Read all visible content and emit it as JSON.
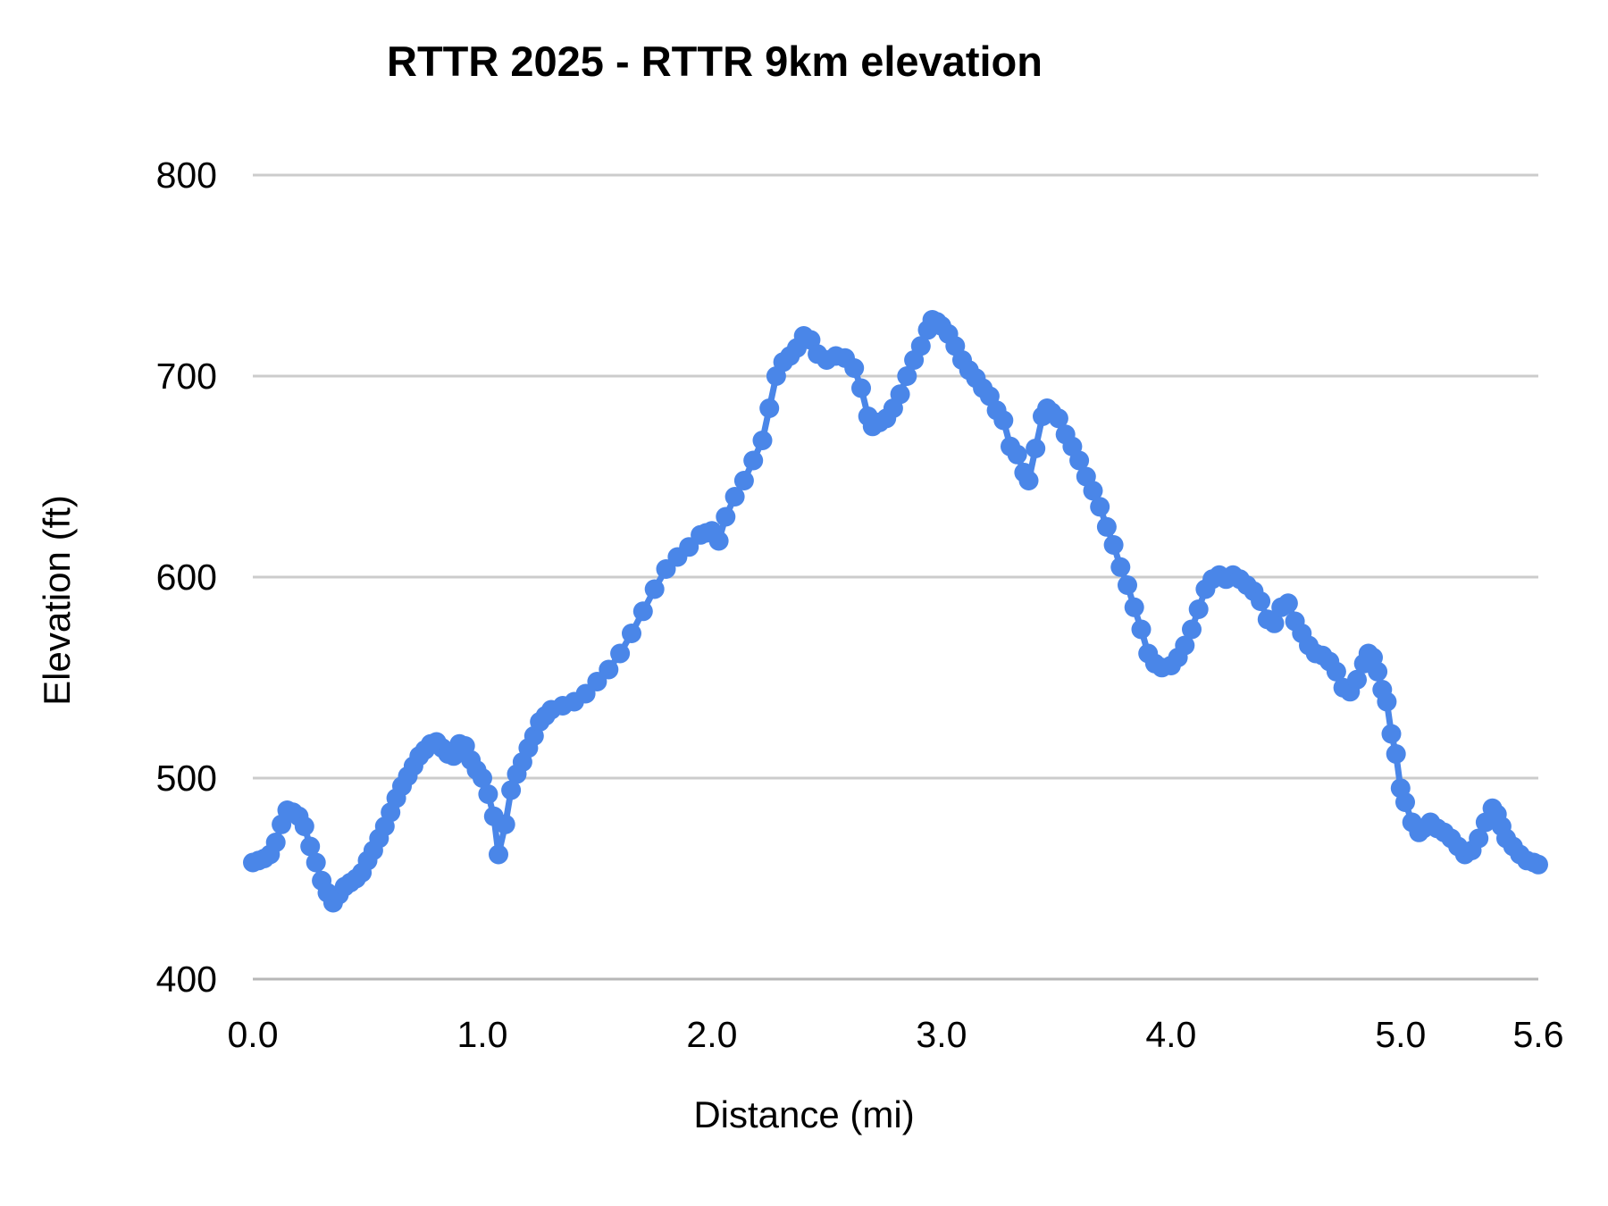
{
  "chart_data": {
    "type": "line",
    "title": "RTTR 2025 - RTTR 9km elevation",
    "xlabel": "Distance (mi)",
    "ylabel": "Elevation (ft)",
    "xlim": [
      0,
      5.6
    ],
    "ylim": [
      400,
      800
    ],
    "xticks": [
      0.0,
      1.0,
      2.0,
      3.0,
      4.0,
      5.0,
      5.6
    ],
    "yticks": [
      400,
      500,
      600,
      700,
      800
    ],
    "grid": "horizontal-only",
    "legend": "none",
    "marker": "circle",
    "series": [
      {
        "name": "elevation-profile",
        "color": "#4a86e8",
        "points": [
          [
            0,
            458
          ],
          [
            0.025,
            459
          ],
          [
            0.05,
            460
          ],
          [
            0.075,
            462
          ],
          [
            0.1,
            468
          ],
          [
            0.125,
            477
          ],
          [
            0.15,
            484
          ],
          [
            0.175,
            483
          ],
          [
            0.2,
            481
          ],
          [
            0.225,
            476
          ],
          [
            0.25,
            466
          ],
          [
            0.275,
            458
          ],
          [
            0.3,
            449
          ],
          [
            0.325,
            443
          ],
          [
            0.35,
            438
          ],
          [
            0.375,
            442
          ],
          [
            0.4,
            446
          ],
          [
            0.425,
            448
          ],
          [
            0.45,
            450
          ],
          [
            0.475,
            453
          ],
          [
            0.5,
            459
          ],
          [
            0.525,
            464
          ],
          [
            0.55,
            470
          ],
          [
            0.575,
            476
          ],
          [
            0.6,
            483
          ],
          [
            0.625,
            490
          ],
          [
            0.65,
            496
          ],
          [
            0.675,
            501
          ],
          [
            0.7,
            506
          ],
          [
            0.725,
            511
          ],
          [
            0.75,
            514
          ],
          [
            0.775,
            517
          ],
          [
            0.8,
            518
          ],
          [
            0.825,
            515
          ],
          [
            0.85,
            512
          ],
          [
            0.875,
            511
          ],
          [
            0.9,
            517
          ],
          [
            0.925,
            516
          ],
          [
            0.95,
            509
          ],
          [
            0.975,
            504
          ],
          [
            1,
            500
          ],
          [
            1.025,
            492
          ],
          [
            1.05,
            481
          ],
          [
            1.07,
            462
          ],
          [
            1.1,
            477
          ],
          [
            1.125,
            494
          ],
          [
            1.15,
            502
          ],
          [
            1.175,
            508
          ],
          [
            1.2,
            515
          ],
          [
            1.225,
            521
          ],
          [
            1.25,
            528
          ],
          [
            1.275,
            531
          ],
          [
            1.3,
            534
          ],
          [
            1.35,
            536
          ],
          [
            1.4,
            538
          ],
          [
            1.45,
            542
          ],
          [
            1.5,
            548
          ],
          [
            1.55,
            554
          ],
          [
            1.6,
            562
          ],
          [
            1.65,
            572
          ],
          [
            1.7,
            583
          ],
          [
            1.75,
            594
          ],
          [
            1.8,
            604
          ],
          [
            1.85,
            610
          ],
          [
            1.9,
            615
          ],
          [
            1.95,
            621
          ],
          [
            1.975,
            622
          ],
          [
            2,
            623
          ],
          [
            2.03,
            618
          ],
          [
            2.06,
            630
          ],
          [
            2.1,
            640
          ],
          [
            2.14,
            648
          ],
          [
            2.18,
            658
          ],
          [
            2.22,
            668
          ],
          [
            2.25,
            684
          ],
          [
            2.28,
            700
          ],
          [
            2.31,
            707
          ],
          [
            2.34,
            710
          ],
          [
            2.37,
            714
          ],
          [
            2.4,
            720
          ],
          [
            2.43,
            718
          ],
          [
            2.46,
            711
          ],
          [
            2.5,
            708
          ],
          [
            2.54,
            710
          ],
          [
            2.58,
            709
          ],
          [
            2.62,
            704
          ],
          [
            2.65,
            694
          ],
          [
            2.68,
            680
          ],
          [
            2.7,
            675
          ],
          [
            2.73,
            677
          ],
          [
            2.76,
            679
          ],
          [
            2.79,
            684
          ],
          [
            2.82,
            691
          ],
          [
            2.85,
            700
          ],
          [
            2.88,
            708
          ],
          [
            2.91,
            715
          ],
          [
            2.94,
            723
          ],
          [
            2.96,
            728
          ],
          [
            2.98,
            727
          ],
          [
            3,
            725
          ],
          [
            3.03,
            721
          ],
          [
            3.06,
            715
          ],
          [
            3.09,
            708
          ],
          [
            3.12,
            703
          ],
          [
            3.15,
            699
          ],
          [
            3.18,
            694
          ],
          [
            3.21,
            690
          ],
          [
            3.24,
            683
          ],
          [
            3.27,
            678
          ],
          [
            3.3,
            665
          ],
          [
            3.33,
            661
          ],
          [
            3.36,
            652
          ],
          [
            3.38,
            648
          ],
          [
            3.41,
            664
          ],
          [
            3.44,
            680
          ],
          [
            3.46,
            684
          ],
          [
            3.48,
            682
          ],
          [
            3.51,
            679
          ],
          [
            3.54,
            671
          ],
          [
            3.57,
            665
          ],
          [
            3.6,
            658
          ],
          [
            3.63,
            650
          ],
          [
            3.66,
            643
          ],
          [
            3.69,
            635
          ],
          [
            3.72,
            625
          ],
          [
            3.75,
            616
          ],
          [
            3.78,
            605
          ],
          [
            3.81,
            596
          ],
          [
            3.84,
            585
          ],
          [
            3.87,
            574
          ],
          [
            3.9,
            562
          ],
          [
            3.93,
            557
          ],
          [
            3.96,
            555
          ],
          [
            4,
            556
          ],
          [
            4.03,
            560
          ],
          [
            4.06,
            566
          ],
          [
            4.09,
            574
          ],
          [
            4.12,
            584
          ],
          [
            4.15,
            594
          ],
          [
            4.18,
            599
          ],
          [
            4.21,
            601
          ],
          [
            4.24,
            599
          ],
          [
            4.27,
            601
          ],
          [
            4.3,
            599
          ],
          [
            4.33,
            596
          ],
          [
            4.36,
            593
          ],
          [
            4.39,
            588
          ],
          [
            4.42,
            579
          ],
          [
            4.45,
            577
          ],
          [
            4.48,
            585
          ],
          [
            4.51,
            587
          ],
          [
            4.54,
            578
          ],
          [
            4.57,
            572
          ],
          [
            4.6,
            566
          ],
          [
            4.63,
            562
          ],
          [
            4.66,
            561
          ],
          [
            4.69,
            558
          ],
          [
            4.72,
            553
          ],
          [
            4.75,
            545
          ],
          [
            4.78,
            543
          ],
          [
            4.81,
            549
          ],
          [
            4.84,
            557
          ],
          [
            4.86,
            562
          ],
          [
            4.88,
            560
          ],
          [
            4.9,
            553
          ],
          [
            4.92,
            544
          ],
          [
            4.94,
            538
          ],
          [
            4.96,
            522
          ],
          [
            4.98,
            512
          ],
          [
            5,
            495
          ],
          [
            5.02,
            488
          ],
          [
            5.05,
            478
          ],
          [
            5.08,
            473
          ],
          [
            5.1,
            475
          ],
          [
            5.13,
            478
          ],
          [
            5.16,
            475
          ],
          [
            5.19,
            473
          ],
          [
            5.22,
            470
          ],
          [
            5.25,
            466
          ],
          [
            5.28,
            462
          ],
          [
            5.31,
            464
          ],
          [
            5.34,
            470
          ],
          [
            5.37,
            478
          ],
          [
            5.4,
            485
          ],
          [
            5.42,
            482
          ],
          [
            5.44,
            476
          ],
          [
            5.46,
            470
          ],
          [
            5.49,
            466
          ],
          [
            5.52,
            462
          ],
          [
            5.55,
            459
          ],
          [
            5.58,
            458
          ],
          [
            5.6,
            457
          ]
        ]
      }
    ]
  },
  "style": {
    "series_color": "#4a86e8",
    "gridline_color": "#cccccc",
    "baseline_color": "#b7b7b7",
    "background": "#ffffff",
    "text_color": "#000000"
  },
  "labels": {
    "title": "RTTR 2025 - RTTR 9km elevation",
    "x_axis": "Distance (mi)",
    "y_axis": "Elevation (ft)"
  }
}
